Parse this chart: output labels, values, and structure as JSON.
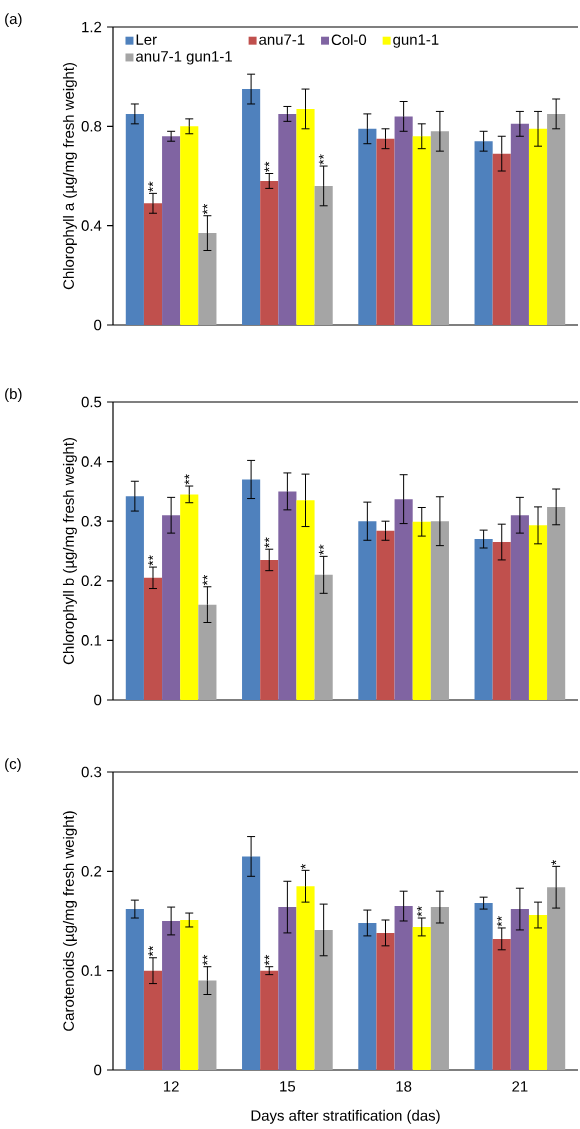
{
  "chart_data": [
    {
      "type": "bar",
      "title": "(a)",
      "ylabel": "Chlorophyll a (µg/mg fresh weight)",
      "categories": [
        "12",
        "15",
        "18",
        "21"
      ],
      "series": [
        {
          "name": "Ler",
          "color": "#4f81bd",
          "values": [
            0.85,
            0.95,
            0.79,
            0.74
          ],
          "errors": [
            0.04,
            0.06,
            0.06,
            0.04
          ]
        },
        {
          "name": "anu7-1",
          "color": "#c0504d",
          "values": [
            0.49,
            0.58,
            0.75,
            0.69
          ],
          "errors": [
            0.04,
            0.03,
            0.04,
            0.07
          ],
          "value_labels": [
            "**",
            "**",
            null,
            null
          ]
        },
        {
          "name": "Col-0",
          "color": "#8064a2",
          "values": [
            0.76,
            0.85,
            0.84,
            0.81
          ],
          "errors": [
            0.02,
            0.03,
            0.06,
            0.05
          ]
        },
        {
          "name": "gun1-1",
          "color": "#ffff00",
          "values": [
            0.8,
            0.87,
            0.76,
            0.79
          ],
          "errors": [
            0.03,
            0.08,
            0.05,
            0.07
          ]
        },
        {
          "name": "anu7-1 gun1-1",
          "color": "#a5a5a5",
          "values": [
            0.37,
            0.56,
            0.78,
            0.85
          ],
          "errors": [
            0.07,
            0.08,
            0.08,
            0.06
          ],
          "value_labels": [
            "**",
            "**",
            null,
            null
          ]
        }
      ],
      "ylim": [
        0,
        1.2
      ],
      "yticks": [
        0,
        0.4,
        0.8,
        1.2
      ],
      "tick_labels": "y",
      "legend": "top"
    },
    {
      "type": "bar",
      "title": "(b)",
      "ylabel": "Chlorophyll b (µg/mg fresh weight)",
      "categories": [
        "12",
        "15",
        "18",
        "21"
      ],
      "series": [
        {
          "color": "#4f81bd",
          "values": [
            0.342,
            0.37,
            0.3,
            0.27
          ],
          "errors": [
            0.025,
            0.032,
            0.032,
            0.015
          ]
        },
        {
          "color": "#c0504d",
          "values": [
            0.205,
            0.235,
            0.284,
            0.265
          ],
          "errors": [
            0.018,
            0.018,
            0.016,
            0.03
          ],
          "value_labels": [
            "**",
            "**",
            null,
            null
          ]
        },
        {
          "color": "#8064a2",
          "values": [
            0.31,
            0.35,
            0.337,
            0.31
          ],
          "errors": [
            0.03,
            0.031,
            0.041,
            0.03
          ]
        },
        {
          "color": "#ffff00",
          "values": [
            0.345,
            0.335,
            0.299,
            0.293
          ],
          "errors": [
            0.014,
            0.044,
            0.024,
            0.031
          ],
          "value_labels": [
            "**",
            null,
            null,
            null
          ]
        },
        {
          "color": "#a5a5a5",
          "values": [
            0.16,
            0.21,
            0.3,
            0.324
          ],
          "errors": [
            0.03,
            0.031,
            0.041,
            0.03
          ],
          "value_labels": [
            "**",
            "**",
            null,
            null
          ]
        }
      ],
      "ylim": [
        0,
        0.5
      ],
      "yticks": [
        0,
        0.1,
        0.2,
        0.3,
        0.4,
        0.5
      ],
      "tick_labels": "y"
    },
    {
      "type": "bar",
      "title": "(c)",
      "ylabel": "Carotenoids (µg/mg fresh weight)",
      "xlabel": "Days after stratification (das)",
      "categories": [
        "12",
        "15",
        "18",
        "21"
      ],
      "series": [
        {
          "color": "#4f81bd",
          "values": [
            0.162,
            0.215,
            0.148,
            0.168
          ],
          "errors": [
            0.009,
            0.02,
            0.013,
            0.006
          ]
        },
        {
          "color": "#c0504d",
          "values": [
            0.1,
            0.1,
            0.138,
            0.132
          ],
          "errors": [
            0.013,
            0.004,
            0.013,
            0.011
          ],
          "value_labels": [
            "**",
            "**",
            null,
            "**"
          ]
        },
        {
          "color": "#8064a2",
          "values": [
            0.15,
            0.164,
            0.165,
            0.162
          ],
          "errors": [
            0.014,
            0.026,
            0.015,
            0.021
          ]
        },
        {
          "color": "#ffff00",
          "values": [
            0.151,
            0.185,
            0.144,
            0.156
          ],
          "errors": [
            0.007,
            0.016,
            0.009,
            0.013
          ],
          "value_labels": [
            null,
            "*",
            "**",
            null
          ]
        },
        {
          "color": "#a5a5a5",
          "values": [
            0.09,
            0.141,
            0.164,
            0.184
          ],
          "errors": [
            0.014,
            0.026,
            0.016,
            0.021
          ],
          "value_labels": [
            "**",
            null,
            null,
            "*"
          ]
        }
      ],
      "ylim": [
        0,
        0.3
      ],
      "yticks": [
        0,
        0.1,
        0.2,
        0.3
      ]
    }
  ]
}
